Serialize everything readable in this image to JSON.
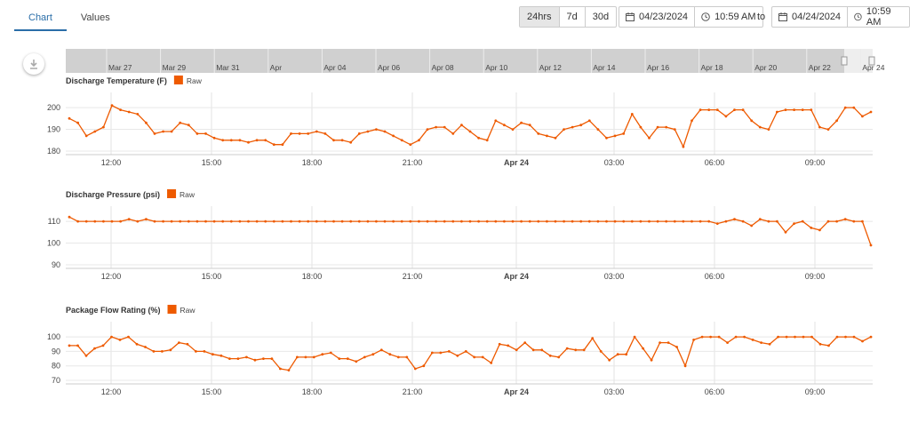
{
  "tabs": [
    {
      "label": "Chart",
      "active": true
    },
    {
      "label": "Values",
      "active": false
    }
  ],
  "range_buttons": [
    {
      "label": "24hrs",
      "selected": true
    },
    {
      "label": "7d",
      "selected": false
    },
    {
      "label": "30d",
      "selected": false
    }
  ],
  "date_from": {
    "date": "04/23/2024",
    "time": "10:59 AM"
  },
  "to_label": "to",
  "date_to": {
    "date": "04/24/2024",
    "time": "10:59 AM"
  },
  "icons": {
    "calendar": "calendar-icon",
    "clock": "clock-icon",
    "download": "download-icon"
  },
  "colors": {
    "series": "#ee5a00",
    "accent": "#2a6ea8"
  },
  "navigator_labels": [
    "Mar 27",
    "Mar 29",
    "Mar 31",
    "Apr",
    "Apr 04",
    "Apr 06",
    "Apr 08",
    "Apr 10",
    "Apr 12",
    "Apr 14",
    "Apr 16",
    "Apr 18",
    "Apr 20",
    "Apr 22",
    "Apr 24"
  ],
  "chart_data": [
    {
      "type": "line",
      "title": "Discharge Temperature (F)",
      "legend": "Raw",
      "ylim": [
        180,
        200
      ],
      "yticks": [
        180,
        190,
        200
      ],
      "xticks": [
        "12:00",
        "15:00",
        "18:00",
        "21:00",
        "Apr 24",
        "03:00",
        "06:00",
        "09:00"
      ],
      "x_start": "10:59",
      "x_end": "10:59",
      "values": [
        195,
        193,
        187,
        189,
        191,
        201,
        199,
        198,
        197,
        193,
        188,
        189,
        189,
        193,
        192,
        188,
        188,
        186,
        185,
        185,
        185,
        184,
        185,
        185,
        183,
        183,
        188,
        188,
        188,
        189,
        188,
        185,
        185,
        184,
        188,
        189,
        190,
        189,
        187,
        185,
        183,
        185,
        190,
        191,
        191,
        188,
        192,
        189,
        186,
        185,
        194,
        192,
        190,
        193,
        192,
        188,
        187,
        186,
        190,
        191,
        192,
        194,
        190,
        186,
        187,
        188,
        197,
        191,
        186,
        191,
        191,
        190,
        182,
        194,
        199,
        199,
        199,
        196,
        199,
        199,
        194,
        191,
        190,
        198,
        199,
        199,
        199,
        199,
        191,
        190,
        194,
        200,
        200,
        196,
        198
      ]
    },
    {
      "type": "line",
      "title": "Discharge Pressure (psi)",
      "legend": "Raw",
      "ylim": [
        90,
        110
      ],
      "yticks": [
        90,
        100,
        110
      ],
      "xticks": [
        "12:00",
        "15:00",
        "18:00",
        "21:00",
        "Apr 24",
        "03:00",
        "06:00",
        "09:00"
      ],
      "x_start": "10:59",
      "x_end": "10:59",
      "values": [
        112,
        110,
        110,
        110,
        110,
        110,
        110,
        111,
        110,
        111,
        110,
        110,
        110,
        110,
        110,
        110,
        110,
        110,
        110,
        110,
        110,
        110,
        110,
        110,
        110,
        110,
        110,
        110,
        110,
        110,
        110,
        110,
        110,
        110,
        110,
        110,
        110,
        110,
        110,
        110,
        110,
        110,
        110,
        110,
        110,
        110,
        110,
        110,
        110,
        110,
        110,
        110,
        110,
        110,
        110,
        110,
        110,
        110,
        110,
        110,
        110,
        110,
        110,
        110,
        110,
        110,
        110,
        110,
        110,
        110,
        110,
        110,
        110,
        110,
        110,
        110,
        109,
        110,
        111,
        110,
        108,
        111,
        110,
        110,
        105,
        109,
        110,
        107,
        106,
        110,
        110,
        111,
        110,
        110,
        99
      ]
    },
    {
      "type": "line",
      "title": "Package Flow Rating (%)",
      "legend": "Raw",
      "ylim": [
        70,
        100
      ],
      "yticks": [
        70,
        80,
        90,
        100
      ],
      "xticks": [
        "12:00",
        "15:00",
        "18:00",
        "21:00",
        "Apr 24",
        "03:00",
        "06:00",
        "09:00"
      ],
      "x_start": "10:59",
      "x_end": "10:59",
      "values": [
        94,
        94,
        87,
        92,
        94,
        100,
        98,
        100,
        95,
        93,
        90,
        90,
        91,
        96,
        95,
        90,
        90,
        88,
        87,
        85,
        85,
        86,
        84,
        85,
        85,
        78,
        77,
        86,
        86,
        86,
        88,
        89,
        85,
        85,
        83,
        86,
        88,
        91,
        88,
        86,
        86,
        78,
        80,
        89,
        89,
        90,
        87,
        90,
        86,
        86,
        82,
        95,
        94,
        91,
        96,
        91,
        91,
        87,
        86,
        92,
        91,
        91,
        99,
        90,
        84,
        88,
        88,
        100,
        92,
        84,
        96,
        96,
        93,
        80,
        98,
        100,
        100,
        100,
        96,
        100,
        100,
        98,
        96,
        95,
        100,
        100,
        100,
        100,
        100,
        95,
        94,
        100,
        100,
        100,
        97,
        100
      ]
    }
  ]
}
